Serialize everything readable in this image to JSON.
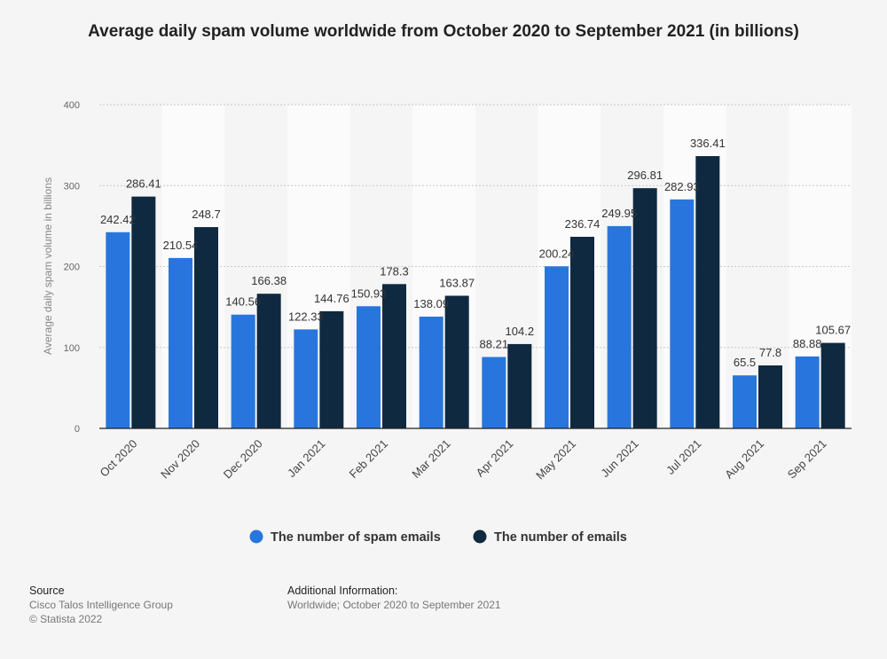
{
  "title": "Average daily spam volume worldwide from October 2020 to September 2021 (in billions)",
  "chart_data": {
    "type": "bar",
    "title": "Average daily spam volume worldwide from October 2020 to September 2021 (in billions)",
    "xlabel": "",
    "ylabel": "Average daily spam volume in billions",
    "ylim": [
      0,
      400
    ],
    "yticks": [
      "0",
      "100",
      "200",
      "300",
      "400"
    ],
    "grid": true,
    "legend_position": "bottom",
    "categories": [
      "Oct 2020",
      "Nov 2020",
      "Dec 2020",
      "Jan 2021",
      "Feb 2021",
      "Mar 2021",
      "Apr 2021",
      "May 2021",
      "Jun 2021",
      "Jul 2021",
      "Aug 2021",
      "Sep 2021"
    ],
    "series": [
      {
        "name": "The number of spam emails",
        "color": "#2876dd",
        "values": [
          242.42,
          210.54,
          140.56,
          122.33,
          150.93,
          138.09,
          88.21,
          200.24,
          249.95,
          282.93,
          65.5,
          88.88
        ]
      },
      {
        "name": "The number of emails",
        "color": "#0f2940",
        "values": [
          286.41,
          248.7,
          166.38,
          144.76,
          178.3,
          163.87,
          104.2,
          236.74,
          296.81,
          336.41,
          77.8,
          105.67
        ]
      }
    ]
  },
  "footer": {
    "source_heading": "Source",
    "source_lines": [
      "Cisco Talos Intelligence Group",
      "© Statista 2022"
    ],
    "info_heading": "Additional Information:",
    "info_lines": [
      "Worldwide; October 2020 to September 2021"
    ]
  }
}
